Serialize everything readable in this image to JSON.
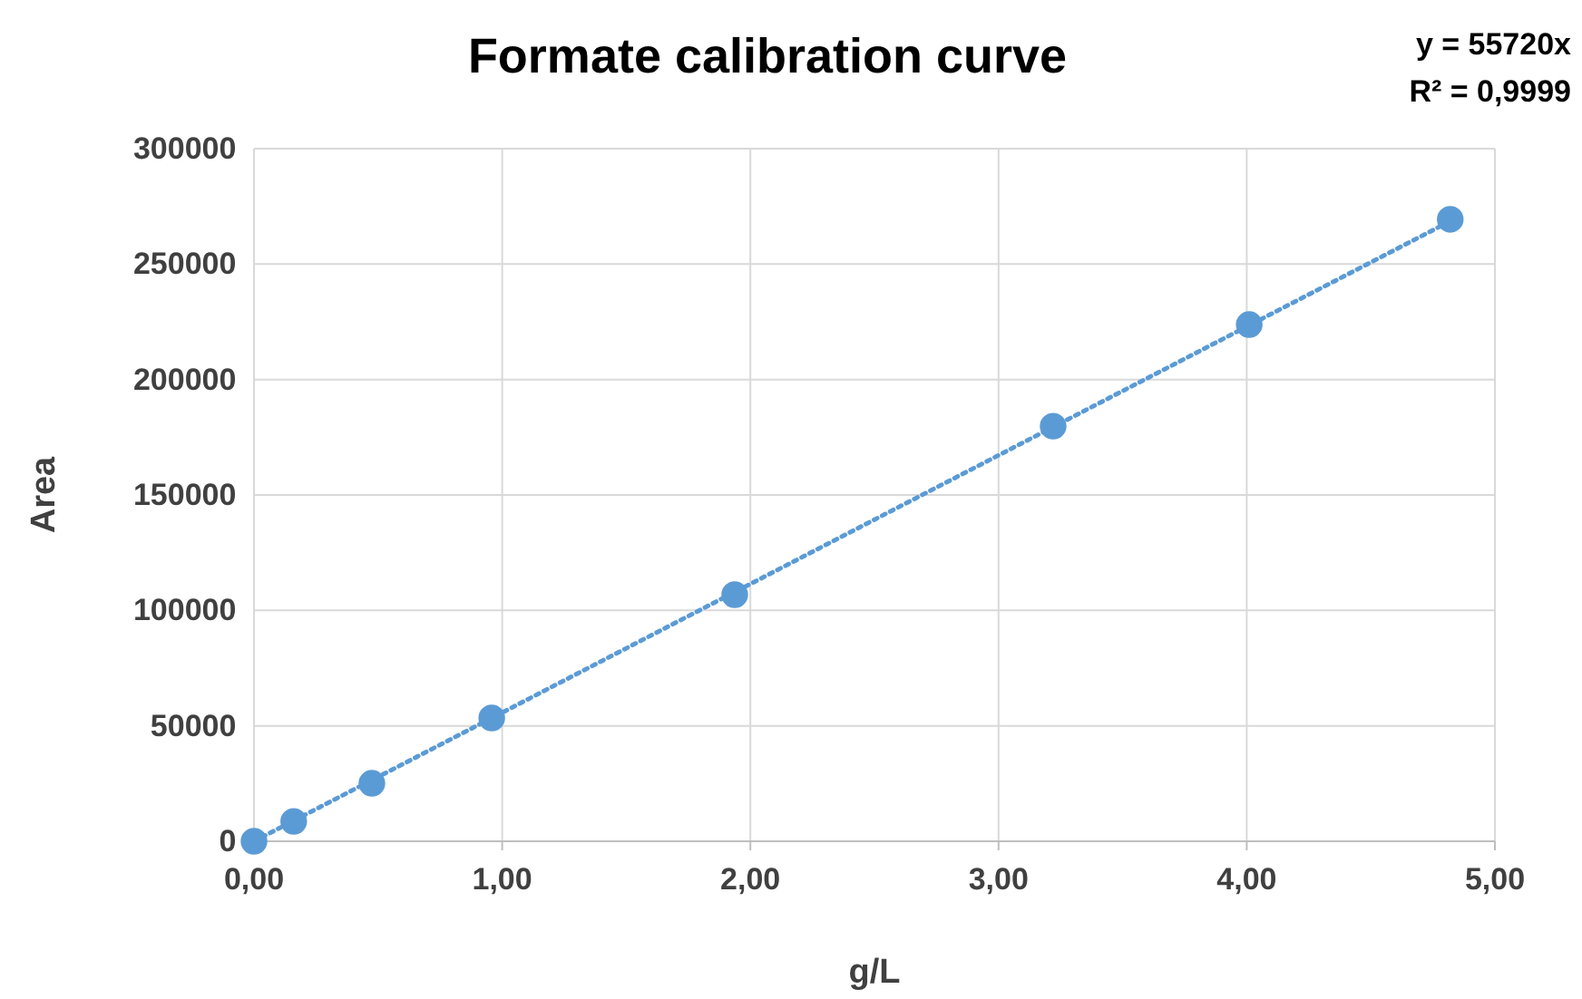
{
  "chart_data": {
    "type": "scatter",
    "title": "Formate calibration curve",
    "xlabel": "g/L",
    "ylabel": "Area",
    "annotations": [
      "y = 55720x",
      "R² = 0,9999"
    ],
    "xlim": [
      0,
      5
    ],
    "xticks": [
      {
        "value": 0,
        "label": "0,00"
      },
      {
        "value": 1,
        "label": "1,00"
      },
      {
        "value": 2,
        "label": "2,00"
      },
      {
        "value": 3,
        "label": "3,00"
      },
      {
        "value": 4,
        "label": "4,00"
      },
      {
        "value": 5,
        "label": "5,00"
      }
    ],
    "ylim": [
      0,
      300000
    ],
    "yticks": [
      0,
      50000,
      100000,
      150000,
      200000,
      250000,
      300000
    ],
    "grid": true,
    "series": [
      {
        "type": "line",
        "color": "#5b9bd5",
        "line_style": "dotted",
        "marker": "none",
        "x": [
          0,
          4.82
        ],
        "values": [
          0,
          268600
        ]
      },
      {
        "marker": "circle",
        "color": "#5b9bd5",
        "x": [
          0,
          0.16,
          0.475,
          0.958,
          1.937,
          3.22,
          4.01,
          4.82
        ],
        "values": [
          0,
          8600,
          25100,
          53400,
          106800,
          179800,
          223800,
          269400
        ]
      }
    ]
  }
}
